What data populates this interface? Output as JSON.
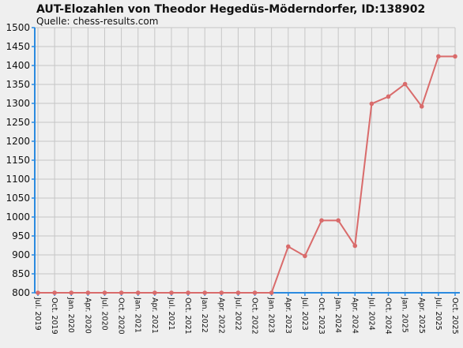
{
  "chart_data": {
    "type": "line",
    "title": "AUT-Elozahlen von Theodor Hegedüs-Möderndorfer, ID:138902",
    "subtitle": "Quelle: chess-results.com",
    "xlabel": "",
    "ylabel": "",
    "ylim": [
      800,
      1500
    ],
    "yticks": [
      800,
      850,
      900,
      950,
      1000,
      1050,
      1100,
      1150,
      1200,
      1250,
      1300,
      1350,
      1400,
      1450,
      1500
    ],
    "grid": true,
    "categories": [
      "Jul. 2019",
      "Oct. 2019",
      "Jan. 2020",
      "Apr. 2020",
      "Jul. 2020",
      "Oct. 2020",
      "Jan. 2021",
      "Apr. 2021",
      "Jul. 2021",
      "Oct. 2021",
      "Jan. 2022",
      "Apr. 2022",
      "Jul. 2022",
      "Oct. 2022",
      "Jan. 2023",
      "Apr. 2023",
      "Jul. 2023",
      "Oct. 2023",
      "Jan. 2024",
      "Apr. 2024",
      "Jul. 2024",
      "Oct. 2024",
      "Jan. 2025",
      "Apr. 2025",
      "Jul. 2025",
      "Oct. 2025"
    ],
    "series": [
      {
        "color": "#d96b6b",
        "values": [
          800,
          800,
          800,
          800,
          800,
          800,
          800,
          800,
          800,
          800,
          800,
          800,
          800,
          800,
          800,
          922,
          897,
          991,
          991,
          924,
          1299,
          1318,
          1351,
          1292,
          1424,
          1424
        ]
      }
    ],
    "colors": {
      "background": "#efefef",
      "grid": "#c6c6c6",
      "axis": "#2b8be0",
      "line": "#d96b6b"
    }
  }
}
